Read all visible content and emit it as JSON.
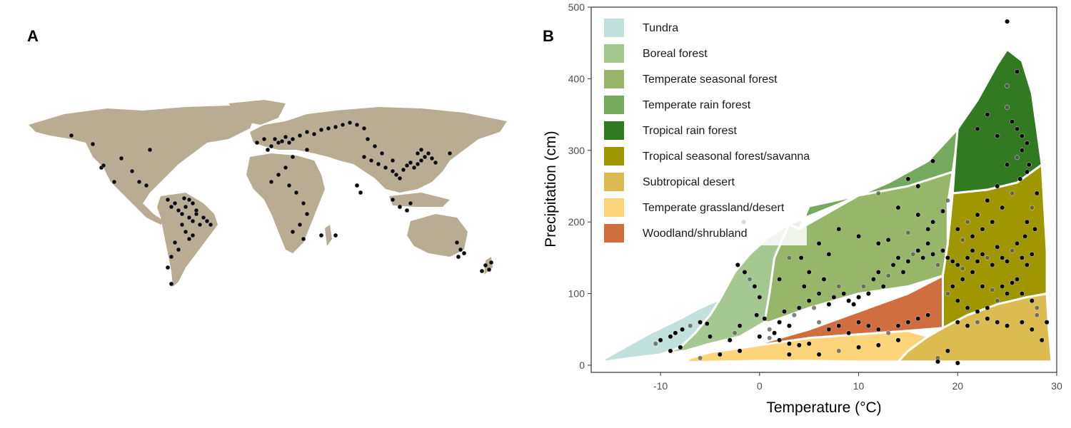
{
  "panel_a": {
    "label": "A"
  },
  "panel_b": {
    "label": "B"
  },
  "colors": {
    "land": "#b8ad93",
    "tundra": "#c1e1dd",
    "boreal_forest": "#a5c790",
    "temperate_seasonal_forest": "#97b669",
    "temperate_rain_forest": "#75a95e",
    "tropical_rain_forest": "#317a22",
    "tropical_seasonal_forest_savanna": "#a09700",
    "subtropical_desert": "#dcbb50",
    "temperate_grassland_desert": "#fcd57a",
    "woodland_shrubland": "#d16e3f",
    "point": "#000000"
  },
  "chart_data": {
    "type": "scatter",
    "title": "",
    "xlabel": "Temperature (°C)",
    "ylabel": "Precipitation (cm)",
    "xlim": [
      -17,
      30
    ],
    "ylim": [
      -10,
      500
    ],
    "xticks": [
      -10,
      0,
      10,
      20,
      30
    ],
    "yticks": [
      0,
      100,
      200,
      300,
      400,
      500
    ],
    "grid": false,
    "legend_position": "top-left inside",
    "legend": [
      {
        "label": "Tundra",
        "color": "#c1e1dd"
      },
      {
        "label": "Boreal forest",
        "color": "#a5c790"
      },
      {
        "label": "Temperate seasonal forest",
        "color": "#97b669"
      },
      {
        "label": "Temperate rain forest",
        "color": "#75a95e"
      },
      {
        "label": "Tropical rain forest",
        "color": "#317a22"
      },
      {
        "label": "Tropical seasonal forest/savanna",
        "color": "#a09700"
      },
      {
        "label": "Subtropical desert",
        "color": "#dcbb50"
      },
      {
        "label": "Temperate grassland/desert",
        "color": "#fcd57a"
      },
      {
        "label": "Woodland/shrubland",
        "color": "#d16e3f"
      }
    ],
    "biome_regions": [
      {
        "name": "Tundra",
        "color": "#c1e1dd",
        "polygon": [
          [
            -15.5,
            5
          ],
          [
            -13,
            10
          ],
          [
            -10,
            15
          ],
          [
            -8,
            25
          ],
          [
            -6.5,
            45
          ],
          [
            -5,
            70
          ],
          [
            -4,
            92
          ],
          [
            -6,
            80
          ],
          [
            -8,
            65
          ],
          [
            -11,
            45
          ],
          [
            -14,
            22
          ],
          [
            -15.8,
            8
          ]
        ]
      },
      {
        "name": "Boreal forest",
        "color": "#a5c790",
        "polygon": [
          [
            -4,
            92
          ],
          [
            -2.5,
            130
          ],
          [
            -1,
            155
          ],
          [
            1,
            180
          ],
          [
            3,
            197
          ],
          [
            1.5,
            150
          ],
          [
            1,
            100
          ],
          [
            0.5,
            60
          ],
          [
            -2,
            40
          ],
          [
            -5,
            30
          ],
          [
            -7.5,
            20
          ],
          [
            -10,
            15
          ],
          [
            -8,
            25
          ],
          [
            -6.5,
            45
          ],
          [
            -5,
            70
          ]
        ]
      },
      {
        "name": "Temperate rain forest",
        "color": "#75a95e",
        "polygon": [
          [
            3,
            197
          ],
          [
            8,
            225
          ],
          [
            13,
            255
          ],
          [
            17,
            285
          ],
          [
            20,
            330
          ],
          [
            19.8,
            300
          ],
          [
            19.5,
            270
          ],
          [
            15,
            250
          ],
          [
            10,
            237
          ],
          [
            5,
            222
          ],
          [
            4,
            190
          ]
        ]
      },
      {
        "name": "Temperate seasonal forest",
        "color": "#97b669",
        "polygon": [
          [
            4,
            190
          ],
          [
            10,
            237
          ],
          [
            15,
            250
          ],
          [
            19.5,
            270
          ],
          [
            19,
            225
          ],
          [
            19,
            170
          ],
          [
            18.5,
            125
          ],
          [
            15,
            110
          ],
          [
            10,
            100
          ],
          [
            5,
            80
          ],
          [
            1,
            60
          ],
          [
            0.5,
            60
          ],
          [
            1,
            100
          ],
          [
            1.5,
            150
          ],
          [
            3,
            197
          ]
        ]
      },
      {
        "name": "Tropical rain forest",
        "color": "#317a22",
        "polygon": [
          [
            20,
            330
          ],
          [
            22,
            370
          ],
          [
            24,
            420
          ],
          [
            25,
            441
          ],
          [
            26.5,
            425
          ],
          [
            27.5,
            380
          ],
          [
            28,
            330
          ],
          [
            28.5,
            280
          ],
          [
            26,
            255
          ],
          [
            23,
            245
          ],
          [
            19.5,
            240
          ],
          [
            19.8,
            300
          ]
        ]
      },
      {
        "name": "Tropical seasonal forest/savanna",
        "color": "#a09700",
        "polygon": [
          [
            19.5,
            240
          ],
          [
            23,
            245
          ],
          [
            26,
            255
          ],
          [
            28.5,
            280
          ],
          [
            28.7,
            230
          ],
          [
            29,
            160
          ],
          [
            29,
            100
          ],
          [
            27,
            95
          ],
          [
            24,
            85
          ],
          [
            21,
            70
          ],
          [
            18.5,
            52
          ],
          [
            18.5,
            125
          ],
          [
            19,
            170
          ]
        ]
      },
      {
        "name": "Woodland/shrubland",
        "color": "#d16e3f",
        "polygon": [
          [
            -7,
            10
          ],
          [
            -4,
            18
          ],
          [
            0,
            30
          ],
          [
            5,
            50
          ],
          [
            10,
            75
          ],
          [
            15,
            100
          ],
          [
            18.5,
            125
          ],
          [
            18.5,
            52
          ],
          [
            15,
            48
          ],
          [
            10,
            43
          ],
          [
            5,
            38
          ],
          [
            0,
            28
          ],
          [
            -5,
            18
          ]
        ]
      },
      {
        "name": "Temperate grassland/desert",
        "color": "#fcd57a",
        "polygon": [
          [
            -7.5,
            4
          ],
          [
            0,
            6
          ],
          [
            5,
            6
          ],
          [
            10,
            5
          ],
          [
            14,
            5
          ],
          [
            15,
            20
          ],
          [
            17,
            40
          ],
          [
            15,
            48
          ],
          [
            10,
            43
          ],
          [
            5,
            38
          ],
          [
            0,
            28
          ],
          [
            -5,
            18
          ],
          [
            -7,
            10
          ]
        ]
      },
      {
        "name": "Subtropical desert",
        "color": "#dcbb50",
        "polygon": [
          [
            14,
            5
          ],
          [
            20,
            5
          ],
          [
            25,
            5
          ],
          [
            29.5,
            5
          ],
          [
            29.2,
            50
          ],
          [
            29,
            100
          ],
          [
            27,
            95
          ],
          [
            24,
            85
          ],
          [
            21,
            70
          ],
          [
            18.5,
            52
          ],
          [
            17,
            40
          ],
          [
            15,
            20
          ]
        ]
      }
    ],
    "points": [
      [
        -10.5,
        30
      ],
      [
        -10,
        35
      ],
      [
        -9,
        40
      ],
      [
        -8.5,
        45
      ],
      [
        -7.8,
        50
      ],
      [
        -7,
        55
      ],
      [
        -6,
        60
      ],
      [
        -5.3,
        58
      ],
      [
        -5,
        40
      ],
      [
        -3,
        35
      ],
      [
        -2.5,
        45
      ],
      [
        -2,
        55
      ],
      [
        -1.6,
        200
      ],
      [
        -2.2,
        140
      ],
      [
        -1.5,
        130
      ],
      [
        -1,
        120
      ],
      [
        -0.5,
        110
      ],
      [
        0,
        95
      ],
      [
        -0.3,
        70
      ],
      [
        0.5,
        65
      ],
      [
        1,
        50
      ],
      [
        1.5,
        45
      ],
      [
        2,
        60
      ],
      [
        2.5,
        75
      ],
      [
        3,
        55
      ],
      [
        3.5,
        70
      ],
      [
        4,
        80
      ],
      [
        4.2,
        150
      ],
      [
        4.5,
        110
      ],
      [
        5,
        90
      ],
      [
        5.5,
        80
      ],
      [
        6,
        100
      ],
      [
        6.5,
        120
      ],
      [
        7,
        85
      ],
      [
        7.5,
        95
      ],
      [
        8,
        110
      ],
      [
        8.5,
        100
      ],
      [
        9,
        90
      ],
      [
        9.5,
        85
      ],
      [
        10,
        95
      ],
      [
        10.5,
        110
      ],
      [
        11,
        100
      ],
      [
        11.5,
        120
      ],
      [
        12,
        130
      ],
      [
        12.5,
        110
      ],
      [
        13,
        125
      ],
      [
        13.5,
        140
      ],
      [
        14,
        150
      ],
      [
        14.5,
        130
      ],
      [
        15,
        145
      ],
      [
        15.5,
        155
      ],
      [
        16,
        160
      ],
      [
        16.5,
        150
      ],
      [
        17,
        170
      ],
      [
        17.5,
        155
      ],
      [
        18,
        140
      ],
      [
        18.5,
        160
      ],
      [
        19,
        150
      ],
      [
        19.5,
        145
      ],
      [
        20,
        140
      ],
      [
        20.5,
        135
      ],
      [
        21,
        150
      ],
      [
        21.5,
        160
      ],
      [
        22,
        145
      ],
      [
        22.5,
        155
      ],
      [
        23,
        150
      ],
      [
        23.5,
        140
      ],
      [
        24,
        165
      ],
      [
        24.5,
        150
      ],
      [
        25,
        145
      ],
      [
        25.5,
        160
      ],
      [
        26,
        170
      ],
      [
        26.5,
        150
      ],
      [
        27,
        140
      ],
      [
        27.5,
        155
      ],
      [
        21,
        200
      ],
      [
        22,
        210
      ],
      [
        23,
        230
      ],
      [
        24,
        250
      ],
      [
        25,
        280
      ],
      [
        26,
        290
      ],
      [
        26.5,
        300
      ],
      [
        27,
        310
      ],
      [
        27.2,
        280
      ],
      [
        26.3,
        260
      ],
      [
        25.5,
        240
      ],
      [
        24.5,
        220
      ],
      [
        23.5,
        200
      ],
      [
        22.5,
        190
      ],
      [
        21.5,
        180
      ],
      [
        20.5,
        175
      ],
      [
        20,
        190
      ],
      [
        22,
        330
      ],
      [
        23,
        350
      ],
      [
        24,
        320
      ],
      [
        25,
        360
      ],
      [
        25.5,
        340
      ],
      [
        26,
        330
      ],
      [
        26.5,
        320
      ],
      [
        27,
        270
      ],
      [
        25,
        390
      ],
      [
        26,
        410
      ],
      [
        25,
        480
      ],
      [
        26.8,
        180
      ],
      [
        27,
        200
      ],
      [
        27.5,
        220
      ],
      [
        28,
        240
      ],
      [
        27.8,
        190
      ],
      [
        26,
        120
      ],
      [
        25,
        100
      ],
      [
        24,
        90
      ],
      [
        23,
        80
      ],
      [
        22,
        75
      ],
      [
        21,
        80
      ],
      [
        20,
        90
      ],
      [
        19,
        100
      ],
      [
        19.5,
        110
      ],
      [
        20.5,
        120
      ],
      [
        21.5,
        130
      ],
      [
        22.5,
        110
      ],
      [
        23.5,
        105
      ],
      [
        24.5,
        110
      ],
      [
        25.5,
        115
      ],
      [
        26.5,
        100
      ],
      [
        27.5,
        90
      ],
      [
        28,
        70
      ],
      [
        28.5,
        35
      ],
      [
        29,
        60
      ],
      [
        20,
        60
      ],
      [
        21,
        55
      ],
      [
        22,
        60
      ],
      [
        23,
        65
      ],
      [
        24,
        60
      ],
      [
        25,
        55
      ],
      [
        19,
        20
      ],
      [
        18,
        10
      ],
      [
        20,
        3
      ],
      [
        17.5,
        285
      ],
      [
        15,
        260
      ],
      [
        16,
        250
      ],
      [
        12,
        240
      ],
      [
        14,
        220
      ],
      [
        16,
        210
      ],
      [
        17.5,
        200
      ],
      [
        18.5,
        215
      ],
      [
        19,
        230
      ],
      [
        8,
        190
      ],
      [
        10,
        180
      ],
      [
        12,
        170
      ],
      [
        13,
        175
      ],
      [
        15,
        185
      ],
      [
        17,
        190
      ],
      [
        6,
        170
      ],
      [
        7,
        155
      ],
      [
        5,
        130
      ],
      [
        3,
        150
      ],
      [
        2,
        120
      ],
      [
        10,
        60
      ],
      [
        11,
        55
      ],
      [
        12,
        50
      ],
      [
        13,
        45
      ],
      [
        14,
        55
      ],
      [
        15,
        60
      ],
      [
        16,
        65
      ],
      [
        17,
        70
      ],
      [
        6,
        60
      ],
      [
        7,
        50
      ],
      [
        8,
        55
      ],
      [
        9,
        45
      ],
      [
        0,
        40
      ],
      [
        1,
        38
      ],
      [
        2,
        35
      ],
      [
        3,
        30
      ],
      [
        4,
        28
      ],
      [
        5,
        30
      ],
      [
        8,
        20
      ],
      [
        10,
        25
      ],
      [
        12,
        28
      ],
      [
        -2,
        20
      ],
      [
        -4,
        15
      ],
      [
        -6,
        10
      ],
      [
        -8,
        25
      ],
      [
        -9,
        20
      ],
      [
        26.5,
        60
      ],
      [
        27.5,
        50
      ],
      [
        28,
        80
      ],
      [
        18,
        5
      ],
      [
        14,
        35
      ],
      [
        6,
        15
      ],
      [
        3,
        15
      ]
    ]
  }
}
